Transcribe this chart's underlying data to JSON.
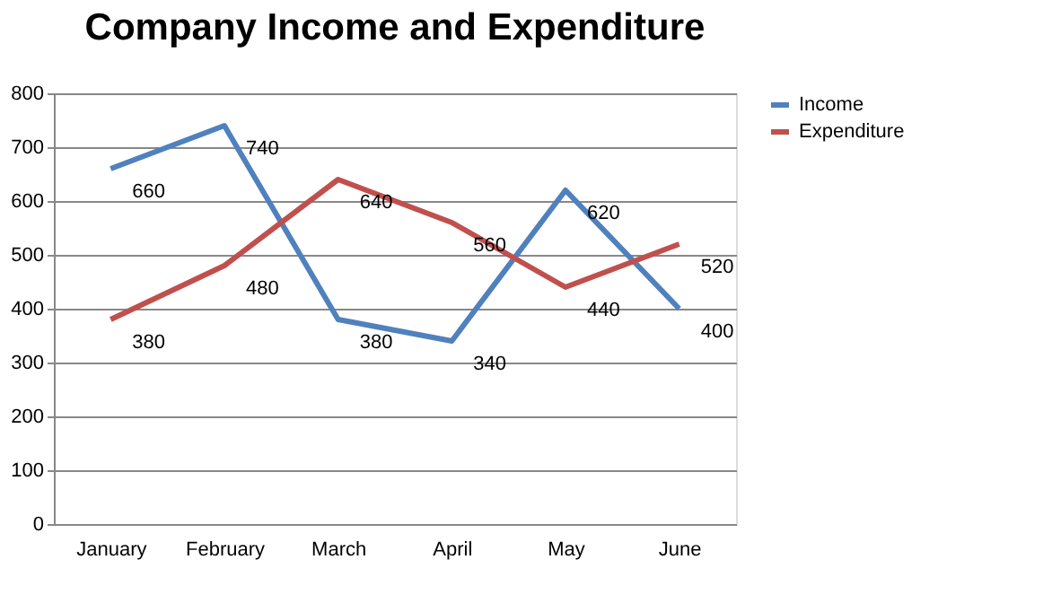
{
  "chart_data": {
    "type": "line",
    "title": "Company Income and Expenditure",
    "categories": [
      "January",
      "February",
      "March",
      "April",
      "May",
      "June"
    ],
    "series": [
      {
        "name": "Income",
        "color": "#4f81bd",
        "values": [
          660,
          740,
          380,
          340,
          620,
          400
        ]
      },
      {
        "name": "Expenditure",
        "color": "#c0504d",
        "values": [
          380,
          480,
          640,
          560,
          440,
          520
        ]
      }
    ],
    "ylim": [
      0,
      800
    ],
    "yticks": [
      0,
      100,
      200,
      300,
      400,
      500,
      600,
      700,
      800
    ],
    "grid": "y",
    "legend": "right",
    "data_labels": true,
    "marker": "none",
    "line_style": "solid"
  }
}
